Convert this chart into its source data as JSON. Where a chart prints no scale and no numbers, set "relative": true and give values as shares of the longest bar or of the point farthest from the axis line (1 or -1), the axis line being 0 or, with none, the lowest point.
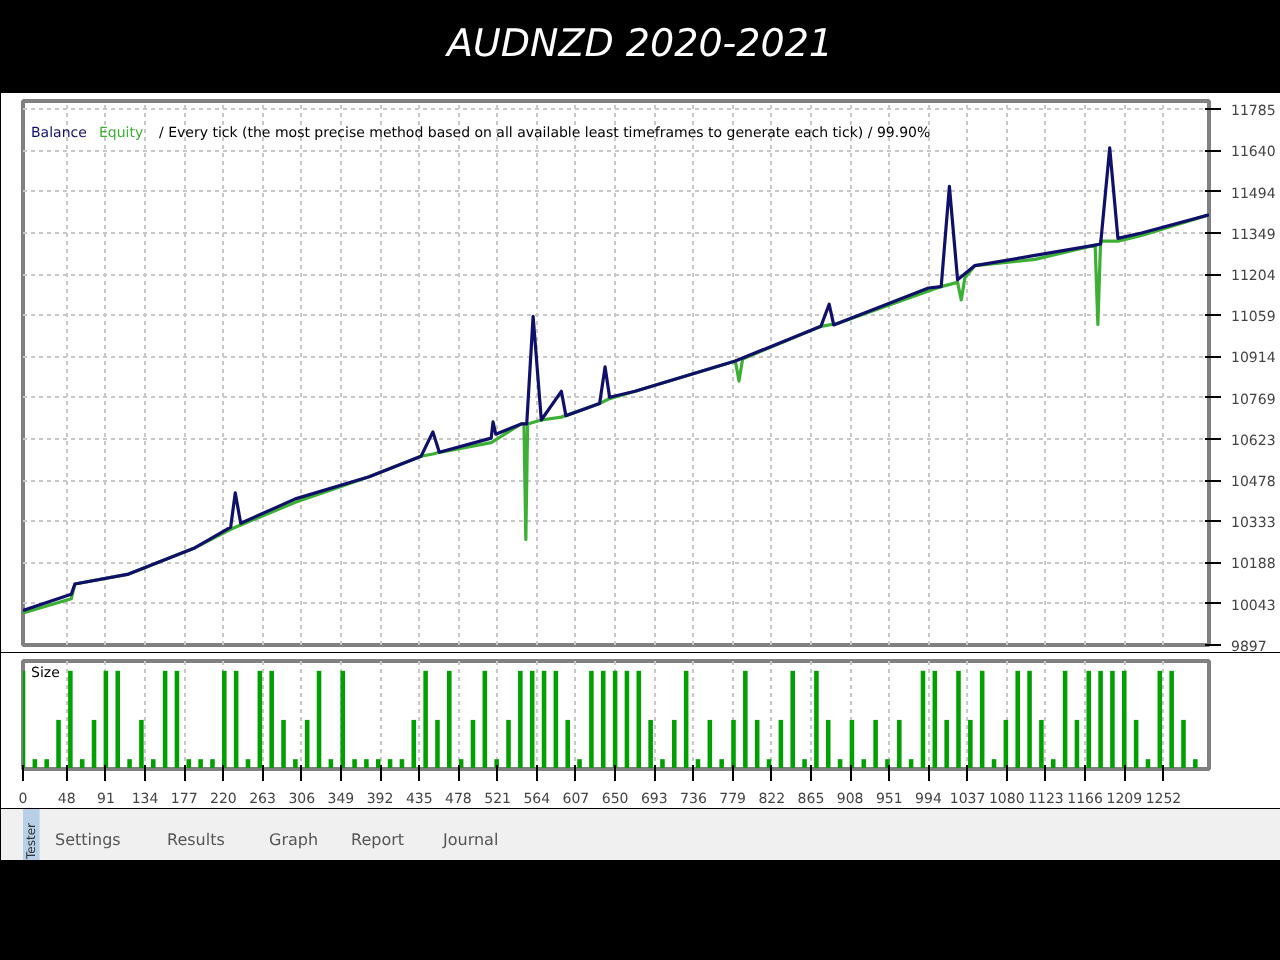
{
  "chart_data": [
    {
      "type": "line",
      "title": "AUDNZD 2020-2021",
      "annotations": [
        "/ Every tick (the most precise method based on all available least timeframes to generate each tick) / 99.90%"
      ],
      "legend": "top left",
      "grid": true,
      "tick_labels": "y",
      "line_style": "solid",
      "marker": "none",
      "xlim": [
        0,
        1302
      ],
      "xticks": [
        0,
        48,
        91,
        134,
        177,
        220,
        263,
        306,
        349,
        392,
        435,
        478,
        521,
        564,
        607,
        650,
        693,
        736,
        779,
        822,
        865,
        908,
        951,
        994,
        1037,
        1080,
        1123,
        1166,
        1209,
        1252
      ],
      "ylim": [
        9897,
        11814
      ],
      "yticks": [
        9897,
        10043,
        10188,
        10333,
        10478,
        10623,
        10769,
        10914,
        11059,
        11204,
        11349,
        11494,
        11640,
        11785
      ],
      "series": [
        {
          "name": "Equity",
          "color": "#3cb034",
          "x": [
            0,
            53,
            57,
            116,
            189,
            228,
            239,
            299,
            380,
            437,
            450,
            457,
            514,
            547,
            550,
            552,
            554,
            569,
            591,
            633,
            644,
            672,
            782,
            786,
            790,
            876,
            894,
            1008,
            1026,
            1030,
            1034,
            1045,
            1111,
            1177,
            1180,
            1183,
            1202,
            1228,
            1302
          ],
          "values": [
            10010,
            10060,
            10112,
            10147,
            10240,
            10305,
            10320,
            10400,
            10490,
            10562,
            10570,
            10576,
            10610,
            10676,
            10676,
            10269,
            10676,
            10690,
            10700,
            10748,
            10765,
            10791,
            10898,
            10827,
            10905,
            11020,
            11030,
            11160,
            11175,
            11113,
            11190,
            11234,
            11256,
            11306,
            11027,
            11320,
            11320,
            11340,
            11413
          ]
        },
        {
          "name": "Balance",
          "color": "#10106b",
          "x": [
            0,
            53,
            57,
            116,
            189,
            228,
            233,
            239,
            299,
            380,
            437,
            450,
            457,
            514,
            516,
            519,
            547,
            553,
            560,
            569,
            591,
            596,
            633,
            639,
            644,
            672,
            782,
            876,
            885,
            890,
            994,
            1008,
            1017,
            1026,
            1045,
            1111,
            1177,
            1183,
            1193,
            1202,
            1228,
            1302
          ],
          "values": [
            10019,
            10076,
            10112,
            10147,
            10240,
            10312,
            10433,
            10326,
            10412,
            10490,
            10562,
            10648,
            10576,
            10626,
            10683,
            10640,
            10676,
            10676,
            11055,
            10690,
            10791,
            10705,
            10748,
            10877,
            10770,
            10791,
            10898,
            11020,
            11098,
            11025,
            11155,
            11160,
            11513,
            11184,
            11234,
            11270,
            11306,
            11310,
            11649,
            11330,
            11349,
            11413
          ]
        }
      ]
    },
    {
      "type": "bar",
      "title": "Size",
      "relative": true,
      "grid": "x",
      "tick_labels": "x",
      "xlim": [
        0,
        1302
      ],
      "xticks": [
        0,
        48,
        91,
        134,
        177,
        220,
        263,
        306,
        349,
        392,
        435,
        478,
        521,
        564,
        607,
        650,
        693,
        736,
        779,
        822,
        865,
        908,
        951,
        994,
        1037,
        1080,
        1123,
        1166,
        1209,
        1252
      ],
      "series": [
        {
          "color": "#00a000",
          "x": [
            0,
            13,
            26,
            39,
            52,
            65,
            78,
            91,
            104,
            117,
            130,
            143,
            156,
            169,
            182,
            195,
            208,
            221,
            234,
            247,
            260,
            273,
            286,
            299,
            312,
            325,
            338,
            351,
            364,
            377,
            390,
            403,
            416,
            429,
            442,
            455,
            468,
            481,
            494,
            507,
            520,
            533,
            546,
            559,
            572,
            585,
            598,
            611,
            624,
            637,
            650,
            663,
            676,
            689,
            702,
            715,
            728,
            741,
            754,
            767,
            780,
            793,
            806,
            819,
            832,
            845,
            858,
            871,
            884,
            897,
            910,
            923,
            936,
            949,
            962,
            975,
            988,
            1001,
            1014,
            1027,
            1040,
            1053,
            1066,
            1079,
            1092,
            1105,
            1118,
            1131,
            1144,
            1157,
            1170,
            1183,
            1196,
            1209,
            1222,
            1235,
            1248,
            1261,
            1274,
            1287
          ],
          "values": [
            1,
            0.1,
            0.1,
            0.5,
            1,
            0.1,
            0.5,
            1,
            1,
            0.1,
            0.5,
            0.1,
            1,
            1,
            0.1,
            0.1,
            0.1,
            1,
            1,
            0.1,
            1,
            1,
            0.5,
            0.1,
            0.5,
            1,
            0.1,
            1,
            0.1,
            0.1,
            0.1,
            0.1,
            0.1,
            0.5,
            1,
            0.5,
            1,
            0.1,
            0.5,
            1,
            0.1,
            0.5,
            1,
            1,
            1,
            1,
            0.5,
            0.1,
            1,
            1,
            1,
            1,
            1,
            0.5,
            0.1,
            0.5,
            1,
            0.1,
            0.5,
            0.1,
            0.5,
            1,
            0.5,
            0.1,
            0.5,
            1,
            0.1,
            1,
            0.5,
            0.1,
            0.5,
            0.1,
            0.5,
            0.1,
            0.5,
            0.1,
            1,
            1,
            0.5,
            1,
            0.5,
            1,
            0.1,
            0.5,
            1,
            1,
            0.5,
            0.1,
            1,
            0.5,
            1,
            1,
            1,
            1,
            0.5,
            0.1,
            1,
            1,
            0.5,
            0.1
          ]
        }
      ]
    },
    {
      "type": "other",
      "annotations": [
        "Tester",
        "Settings",
        "Results",
        "Graph",
        "Report",
        "Journal"
      ]
    }
  ]
}
